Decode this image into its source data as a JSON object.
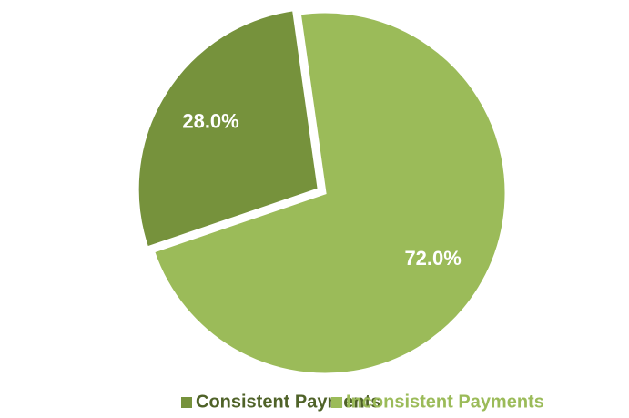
{
  "chart_data": {
    "type": "pie",
    "categories": [
      "Consistent Payments",
      "Inconsistent Payments"
    ],
    "values": [
      28.0,
      72.0
    ],
    "value_labels": [
      "28.0%",
      "72.0%"
    ],
    "colors": [
      "#76923c",
      "#9bbb59"
    ],
    "legend": "bottom"
  }
}
